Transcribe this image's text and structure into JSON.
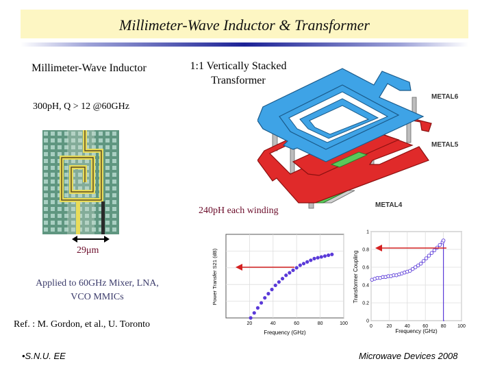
{
  "title": "Millimeter-Wave Inductor & Transformer",
  "inductor": {
    "title": "Millimeter-Wave Inductor",
    "spec": "300pH, Q > 12 @60GHz",
    "dimension": "29μm"
  },
  "transformer": {
    "title": "1:1 Vertically Stacked Transformer",
    "layers": [
      "METAL6",
      "METAL5",
      "METAL4"
    ],
    "winding": "240pH each winding"
  },
  "applications": "Applied to 60GHz Mixer, LNA, VCO MMICs",
  "reference": "Ref. : M. Gordon, et al.,  U. Toronto",
  "footer": {
    "left": "•S.N.U. EE",
    "right": "Microwave Devices 2008"
  },
  "colors": {
    "title_bg": "#fdf6c3",
    "text_maroon": "#6a0a28",
    "metal6": "#3ea3e6",
    "metal5": "#e02a2a",
    "via": "#5ac95a",
    "series": "#5a3ad8",
    "arrow": "#d42020"
  },
  "chart_data": [
    {
      "type": "scatter",
      "xlabel": "Frequency (GHz)",
      "ylabel": "Power Transfer S21 (dB)",
      "xlim": [
        0,
        100
      ],
      "xticks": [
        20,
        40,
        60,
        80,
        100
      ],
      "x": [
        21,
        24,
        27,
        30,
        33,
        36,
        39,
        42,
        45,
        48,
        51,
        54,
        57,
        60,
        63,
        66,
        69,
        72,
        75,
        78,
        81,
        84,
        87,
        90
      ],
      "y": [
        0.0,
        0.06,
        0.12,
        0.18,
        0.24,
        0.29,
        0.34,
        0.39,
        0.43,
        0.47,
        0.51,
        0.54,
        0.57,
        0.6,
        0.63,
        0.65,
        0.67,
        0.69,
        0.71,
        0.72,
        0.73,
        0.74,
        0.75,
        0.76
      ],
      "marker": "filled-circle"
    },
    {
      "type": "line",
      "xlabel": "Frequency (GHz)",
      "ylabel": "Transformer Coupling",
      "xlim": [
        0,
        100
      ],
      "ylim": [
        0,
        1
      ],
      "xticks": [
        0,
        20,
        40,
        60,
        80,
        100
      ],
      "yticks": [
        0,
        0.2,
        0.4,
        0.6,
        0.8,
        1
      ],
      "x": [
        1,
        4,
        7,
        10,
        13,
        16,
        19,
        22,
        25,
        28,
        31,
        34,
        37,
        40,
        43,
        46,
        49,
        52,
        55,
        58,
        61,
        64,
        67,
        70,
        73,
        76,
        79,
        80,
        80,
        81
      ],
      "y": [
        0.46,
        0.47,
        0.48,
        0.48,
        0.49,
        0.49,
        0.5,
        0.5,
        0.51,
        0.51,
        0.52,
        0.53,
        0.54,
        0.55,
        0.56,
        0.58,
        0.6,
        0.62,
        0.64,
        0.67,
        0.7,
        0.73,
        0.76,
        0.79,
        0.82,
        0.85,
        0.88,
        0.9,
        0.0,
        0.0
      ],
      "marker": "open-circle"
    }
  ]
}
